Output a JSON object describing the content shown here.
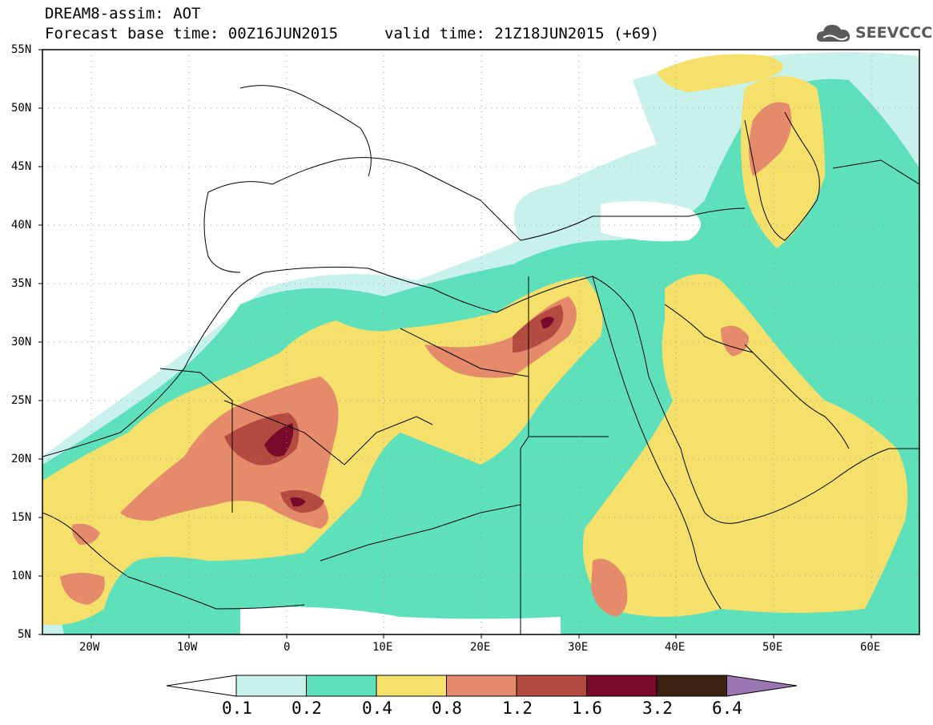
{
  "header": {
    "title_line1": "DREAM8-assim: AOT",
    "title_line2": "Forecast base time: 00Z16JUN2015",
    "valid_time": "valid time: 21Z18JUN2015 (+69)"
  },
  "logo": {
    "text": "SEEVCCC"
  },
  "axes": {
    "lat_labels": [
      "55N",
      "50N",
      "45N",
      "40N",
      "35N",
      "30N",
      "25N",
      "20N",
      "15N",
      "10N",
      "5N"
    ],
    "lon_labels": [
      "20W",
      "10W",
      "0",
      "10E",
      "20E",
      "30E",
      "40E",
      "50E",
      "60E"
    ]
  },
  "colorbar": {
    "labels": [
      "0.1",
      "0.2",
      "0.4",
      "0.8",
      "1.2",
      "1.6",
      "3.2",
      "6.4"
    ],
    "colors": [
      "#ffffff",
      "#c7f1ea",
      "#5ee0bb",
      "#f4e06a",
      "#e58a6a",
      "#b34b41",
      "#7a0a2c",
      "#3c2313",
      "#9b76b2"
    ]
  },
  "colors": {
    "c1": "#c7f1ea",
    "c2": "#5ee0bb",
    "c3": "#f4e06a",
    "c4": "#e58a6a",
    "c5": "#b34b41",
    "c6": "#7a0a2c"
  }
}
